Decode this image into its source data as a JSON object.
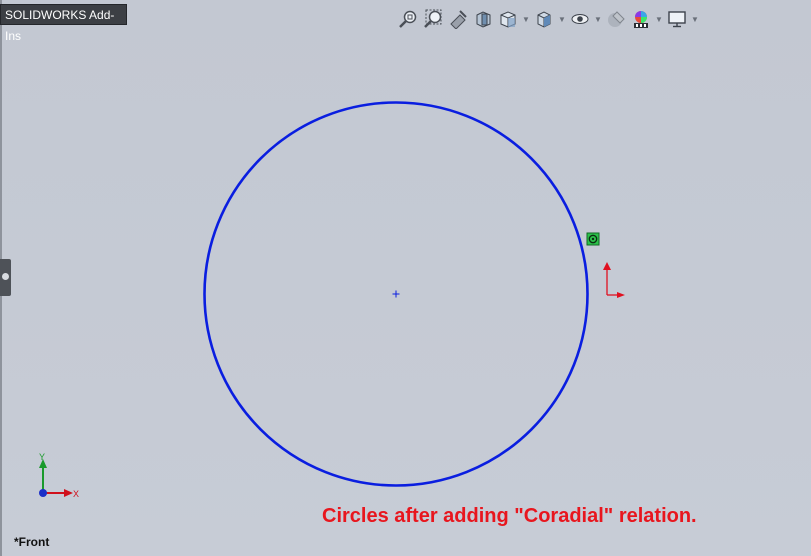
{
  "tab": {
    "title": "SOLIDWORKS Add-Ins"
  },
  "toolbar": {
    "buttons": [
      {
        "icon": "zoom-to-fit-icon"
      },
      {
        "icon": "zoom-to-area-icon"
      },
      {
        "icon": "previous-view-icon"
      },
      {
        "icon": "section-view-icon"
      },
      {
        "icon": "view-orientation-icon",
        "dropdown": true
      },
      {
        "icon": "display-style-icon",
        "dropdown": true
      },
      {
        "icon": "hide-show-items-icon",
        "dropdown": true
      },
      {
        "icon": "edit-appearance-icon"
      },
      {
        "icon": "apply-scene-icon",
        "dropdown": true
      },
      {
        "icon": "view-settings-icon",
        "dropdown": true
      }
    ]
  },
  "sketch": {
    "circle_color": "#0a1ee0",
    "relation_marker_color": "#2bc24a",
    "origin_x_color": "#e01020",
    "origin_y_color": "#e01020"
  },
  "triad": {
    "x_label": "X",
    "y_label": "Y"
  },
  "caption": {
    "text": "Circles after adding \"Coradial\" relation."
  },
  "view": {
    "name": "*Front"
  }
}
